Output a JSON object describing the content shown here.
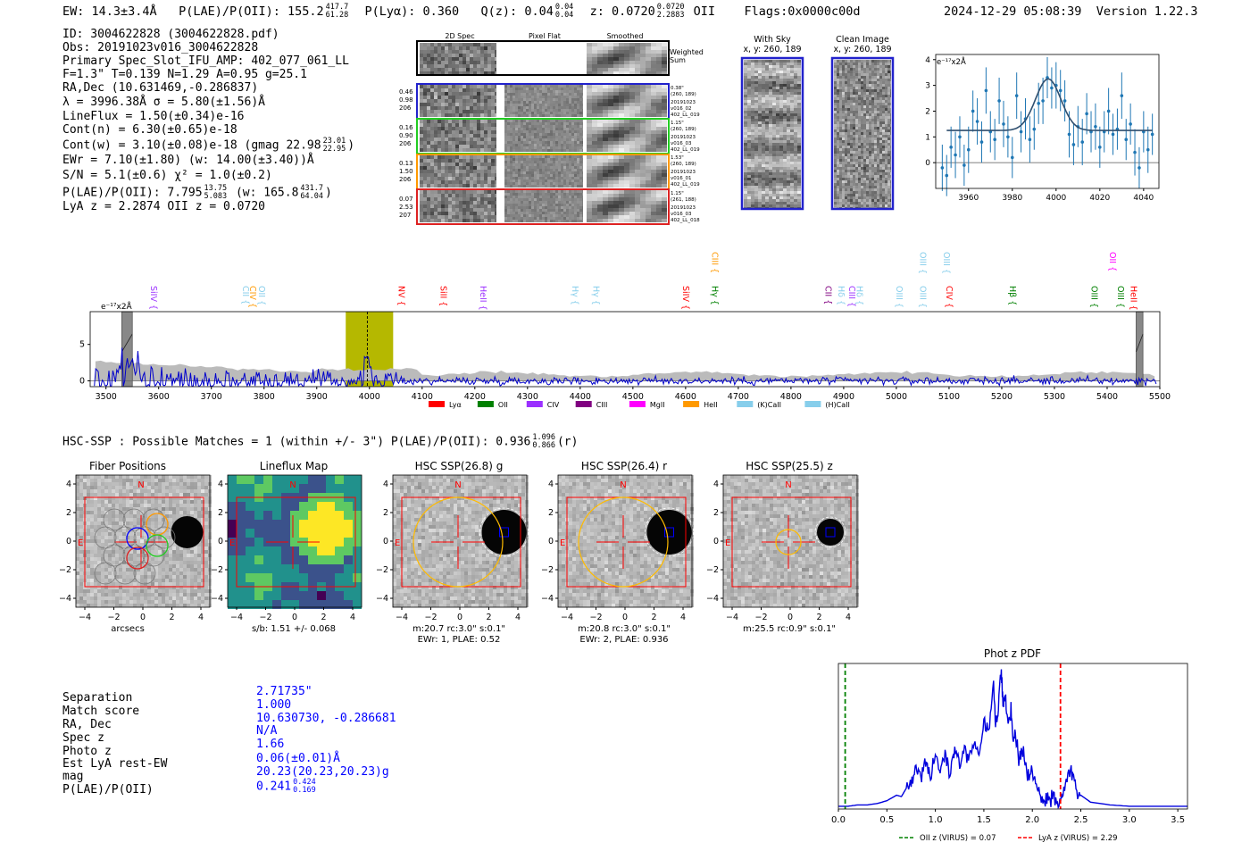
{
  "header": {
    "ew": "EW: 14.3±3.4Å",
    "plae": "P(LAE)/P(OII): 155.2",
    "plae_hi": "417.7",
    "plae_lo": "61.28",
    "plya": "P(Lyα): 0.360",
    "qz": "Q(z): 0.04",
    "qz_hi": "0.04",
    "qz_lo": "0.04",
    "z": "z: 0.0720",
    "z_hi": "0.0720",
    "z_lo": "2.2883",
    "z_line": "OII",
    "flags": "Flags:0x0000c00d",
    "timestamp": "2024-12-29 05:08:39",
    "version": "Version 1.22.3"
  },
  "info": {
    "id": "ID: 3004622828 (3004622828.pdf)",
    "obs": "Obs: 20191023v016_3004622828",
    "primary": "Primary Spec_Slot_IFU_AMP: 402_077_061_LL",
    "fit": "F=1.3\"  T=0.139  N=1.29  A=0.95  g=25.1",
    "radec": "RA,Dec (10.631469,-0.286837)",
    "lambda": "λ = 3996.38Å  σ = 5.80(±1.56)Å",
    "lineflux": "LineFlux = 1.50(±0.34)e-16",
    "contn": "Cont(n) = 6.30(±0.65)e-18",
    "contw": "Cont(w) = 3.10(±0.08)e-18 (gmag 22.98",
    "contw_hi": "23.01",
    "contw_lo": "22.95",
    "contw_end": ")",
    "ewr": "EWr = 7.10(±1.80) (w: 14.00(±3.40))Å",
    "sn": "S/N = 5.1(±0.6)  χ² = 1.0(±0.2)",
    "plae": "P(LAE)/P(OII): 7.795",
    "plae_hi": "13.75",
    "plae_lo": "5.083",
    "plae_w": "(w: 165.8",
    "plae_w_hi": "431.7",
    "plae_w_lo": "64.04",
    "plae_w_end": ")",
    "lyaz": "LyA z = 2.2874  OII z = 0.0720"
  },
  "cutouts": {
    "col_labels": [
      "2D Spec",
      "Pixel Flat",
      "Smoothed"
    ],
    "weighted_label": [
      "Weighted",
      "Sum"
    ],
    "rows": [
      {
        "left": [
          "0.46",
          "0.98",
          "206"
        ],
        "right": [
          "0.38\"",
          "(260, 189)",
          "20191023",
          "v016_02",
          "402_LL_019"
        ],
        "color": "#2222cc"
      },
      {
        "left": [
          "0.16",
          "0.90",
          "206"
        ],
        "right": [
          "1.15\"",
          "(260, 189)",
          "20191023",
          "v016_03",
          "402_LL_019"
        ],
        "color": "#22cc22"
      },
      {
        "left": [
          "0.13",
          "1.50",
          "206"
        ],
        "right": [
          "1.53\"",
          "(260, 189)",
          "20191023",
          "v016_01",
          "402_LL_019"
        ],
        "color": "#ff9900"
      },
      {
        "left": [
          "0.07",
          "2.53",
          "207"
        ],
        "right": [
          "1.15\"",
          "(261, 188)",
          "20191023",
          "v016_03",
          "402_LL_018"
        ],
        "color": "#dd2222"
      }
    ],
    "with_sky_title": "With Sky",
    "with_sky_xy": "x, y: 260, 189",
    "clean_title": "Clean Image",
    "clean_xy": "x, y: 260, 189"
  },
  "zoom_chart": {
    "type": "scatter",
    "ylabel": "e⁻¹⁷x2Å",
    "xlim": [
      3945,
      4047
    ],
    "ylim": [
      -1.0,
      4.2
    ],
    "xticks": [
      3960,
      3980,
      4000,
      4020,
      4040
    ],
    "yticks": [
      0,
      1,
      2,
      3,
      4
    ],
    "x": [
      3948,
      3950,
      3952,
      3954,
      3956,
      3958,
      3960,
      3962,
      3964,
      3966,
      3968,
      3970,
      3972,
      3974,
      3976,
      3978,
      3980,
      3982,
      3984,
      3986,
      3988,
      3990,
      3992,
      3994,
      3996,
      3998,
      4000,
      4002,
      4004,
      4006,
      4008,
      4010,
      4012,
      4014,
      4016,
      4018,
      4020,
      4022,
      4024,
      4026,
      4028,
      4030,
      4032,
      4034,
      4036,
      4038,
      4040,
      4042,
      4044
    ],
    "y": [
      -0.2,
      -0.5,
      0.6,
      0.3,
      1.0,
      -0.1,
      0.5,
      2.0,
      1.6,
      0.8,
      2.8,
      1.2,
      0.9,
      2.4,
      1.5,
      1.0,
      0.2,
      2.6,
      1.2,
      1.7,
      0.9,
      1.3,
      2.3,
      2.4,
      3.3,
      2.9,
      3.0,
      2.8,
      2.4,
      1.1,
      0.7,
      1.4,
      0.8,
      1.9,
      1.2,
      1.4,
      0.6,
      1.2,
      2.0,
      1.1,
      1.3,
      2.6,
      0.9,
      1.5,
      0.4,
      -0.2,
      1.2,
      0.5,
      1.1
    ],
    "err": [
      0.9,
      0.8,
      0.8,
      0.9,
      0.8,
      0.8,
      0.9,
      0.8,
      0.9,
      0.8,
      0.9,
      0.8,
      0.8,
      0.9,
      0.9,
      0.8,
      0.8,
      0.9,
      0.8,
      0.8,
      0.9,
      0.8,
      0.8,
      0.9,
      0.8,
      0.8,
      0.9,
      0.8,
      0.8,
      0.9,
      0.8,
      0.8,
      0.9,
      0.8,
      0.8,
      0.9,
      0.8,
      0.8,
      0.9,
      0.8,
      0.8,
      0.9,
      0.8,
      0.8,
      0.9,
      0.8,
      0.8,
      0.9,
      0.8
    ],
    "fit": {
      "center": 3996.4,
      "sigma": 5.8,
      "amp": 2.0,
      "cont": 1.25
    }
  },
  "spectrum_chart": {
    "type": "line",
    "ylabel": "e⁻¹⁷x2Å",
    "xlim": [
      3470,
      5500
    ],
    "ylim": [
      -0.8,
      9.5
    ],
    "xticks": [
      3500,
      3600,
      3700,
      3800,
      3900,
      4000,
      4100,
      4200,
      4300,
      4400,
      4500,
      4600,
      4700,
      4800,
      4900,
      5000,
      5100,
      5200,
      5300,
      5400,
      5500
    ],
    "yticks": [
      0,
      5
    ],
    "highlight": [
      3955,
      4045
    ],
    "marker": 3996,
    "line_labels": [
      {
        "label": "SiIV",
        "x": 3580,
        "color": "#9b30ff",
        "tier": 1
      },
      {
        "label": "CII",
        "x": 3755,
        "color": "#87ceeb",
        "tier": 1
      },
      {
        "label": "CIV",
        "x": 3768,
        "color": "#ff9900",
        "tier": 1
      },
      {
        "label": "OII",
        "x": 3785,
        "color": "#87ceeb",
        "tier": 1
      },
      {
        "label": "NV",
        "x": 4050,
        "color": "#ff0000",
        "tier": 1
      },
      {
        "label": "SiII",
        "x": 4130,
        "color": "#ff0000",
        "tier": 1
      },
      {
        "label": "HeII",
        "x": 4205,
        "color": "#9b30ff",
        "tier": 1
      },
      {
        "label": "Hγ",
        "x": 4380,
        "color": "#87ceeb",
        "tier": 1
      },
      {
        "label": "Hγ",
        "x": 4420,
        "color": "#87ceeb",
        "tier": 1
      },
      {
        "label": "SiIV",
        "x": 4590,
        "color": "#ff0000",
        "tier": 1
      },
      {
        "label": "CIII",
        "x": 4645,
        "color": "#ff9900",
        "tier": 0
      },
      {
        "label": "Hγ",
        "x": 4645,
        "color": "#008000",
        "tier": 1
      },
      {
        "label": "CII",
        "x": 4860,
        "color": "#800080",
        "tier": 1
      },
      {
        "label": "Hδ",
        "x": 4885,
        "color": "#87ceeb",
        "tier": 1
      },
      {
        "label": "CIII",
        "x": 4905,
        "color": "#9b30ff",
        "tier": 1
      },
      {
        "label": "Hδ",
        "x": 4920,
        "color": "#87ceeb",
        "tier": 1
      },
      {
        "label": "OIII",
        "x": 4995,
        "color": "#87ceeb",
        "tier": 1
      },
      {
        "label": "OIII",
        "x": 5040,
        "color": "#87ceeb",
        "tier": 0
      },
      {
        "label": "OIII",
        "x": 5040,
        "color": "#87ceeb",
        "tier": 1
      },
      {
        "label": "OIII",
        "x": 5085,
        "color": "#87ceeb",
        "tier": 0
      },
      {
        "label": "CIV",
        "x": 5090,
        "color": "#ff0000",
        "tier": 1
      },
      {
        "label": "Hβ",
        "x": 5210,
        "color": "#008000",
        "tier": 1
      },
      {
        "label": "OIII",
        "x": 5365,
        "color": "#008000",
        "tier": 1
      },
      {
        "label": "OII",
        "x": 5400,
        "color": "#ff00ff",
        "tier": 0
      },
      {
        "label": "OIII",
        "x": 5415,
        "color": "#008000",
        "tier": 1
      },
      {
        "label": "HeII",
        "x": 5440,
        "color": "#ff0000",
        "tier": 1
      }
    ],
    "legend": [
      {
        "label": "Lyα",
        "color": "#ff0000"
      },
      {
        "label": "OII",
        "color": "#008000"
      },
      {
        "label": "CIV",
        "color": "#9b30ff"
      },
      {
        "label": "CIII",
        "color": "#800080"
      },
      {
        "label": "MgII",
        "color": "#ff00ff"
      },
      {
        "label": "HeII",
        "color": "#ff9900"
      },
      {
        "label": "(K)CaII",
        "color": "#87ceeb"
      },
      {
        "label": "(H)CaII",
        "color": "#87ceeb"
      }
    ]
  },
  "hsc": {
    "headline": "HSC-SSP : Possible Matches = 1 (within +/- 3\")  P(LAE)/P(OII): 0.936",
    "headline_hi": "1.096",
    "headline_lo": "0.866",
    "headline_end": "(r)"
  },
  "thumbs": [
    {
      "title": "Fiber Positions",
      "caption1": "arcsecs",
      "caption2": ""
    },
    {
      "title": "Lineflux Map",
      "caption1": "s/b: 1.51 +/- 0.068",
      "caption2": ""
    },
    {
      "title": "HSC SSP(26.8) g",
      "caption1": "m:20.7 rc:3.0\"  s:0.1\"",
      "caption2": "EWr: 1, PLAE: 0.52"
    },
    {
      "title": "HSC SSP(26.4) r",
      "caption1": "m:20.8 rc:3.0\"  s:0.1\"",
      "caption2": "EWr: 2, PLAE: 0.936"
    },
    {
      "title": "HSC SSP(25.5) z",
      "caption1": "m:25.5 rc:0.9\"  s:0.1\"",
      "caption2": ""
    }
  ],
  "thumb_axes": {
    "ticks": [
      "−4",
      "−2",
      "0",
      "2",
      "4"
    ],
    "yticks": [
      "4",
      "2",
      "0",
      "−2",
      "−4"
    ],
    "n_label": "N",
    "e_label": "E"
  },
  "match": {
    "labels": [
      "Separation",
      "Match score",
      "RA, Dec",
      "Spec z",
      "Photo z",
      "Est LyA rest-EW",
      "mag",
      "P(LAE)/P(OII)"
    ],
    "values": [
      "2.71735\"",
      "1.000",
      "10.630730, -0.286681",
      "N/A",
      "1.66",
      "0.06(±0.01)Å",
      "20.23(20.23,20.23)g",
      "0.241"
    ],
    "plae_hi": "0.424",
    "plae_lo": "0.169"
  },
  "chart_data": {
    "type": "line",
    "title": "Phot z PDF",
    "xlim": [
      0.0,
      3.6
    ],
    "xticks": [
      0.0,
      0.5,
      1.0,
      1.5,
      2.0,
      2.5,
      3.0,
      3.5
    ],
    "oii_z": 0.07,
    "lya_z": 2.29,
    "legend": [
      {
        "label": "OII z (VIRUS) = 0.07",
        "color": "#008000"
      },
      {
        "label": "LyA z (VIRUS) = 2.29",
        "color": "#ff0000"
      }
    ],
    "x": [
      0.0,
      0.1,
      0.2,
      0.3,
      0.4,
      0.5,
      0.55,
      0.6,
      0.65,
      0.7,
      0.75,
      0.8,
      0.85,
      0.9,
      0.95,
      1.0,
      1.05,
      1.1,
      1.15,
      1.2,
      1.25,
      1.3,
      1.35,
      1.4,
      1.45,
      1.5,
      1.55,
      1.6,
      1.62,
      1.65,
      1.68,
      1.7,
      1.72,
      1.75,
      1.78,
      1.8,
      1.83,
      1.86,
      1.9,
      1.95,
      2.0,
      2.05,
      2.1,
      2.15,
      2.2,
      2.25,
      2.3,
      2.35,
      2.4,
      2.45,
      2.5,
      2.6,
      2.8,
      3.0,
      3.2,
      3.4,
      3.6
    ],
    "y": [
      0.02,
      0.02,
      0.03,
      0.03,
      0.04,
      0.06,
      0.08,
      0.1,
      0.09,
      0.15,
      0.18,
      0.3,
      0.25,
      0.35,
      0.22,
      0.4,
      0.3,
      0.38,
      0.28,
      0.45,
      0.33,
      0.42,
      0.36,
      0.5,
      0.38,
      0.62,
      0.55,
      0.9,
      0.6,
      0.75,
      1.0,
      0.7,
      0.82,
      0.6,
      0.72,
      0.5,
      0.55,
      0.35,
      0.42,
      0.25,
      0.3,
      0.12,
      0.08,
      0.05,
      0.06,
      0.05,
      0.12,
      0.22,
      0.3,
      0.15,
      0.1,
      0.05,
      0.03,
      0.02,
      0.02,
      0.02,
      0.02
    ]
  }
}
